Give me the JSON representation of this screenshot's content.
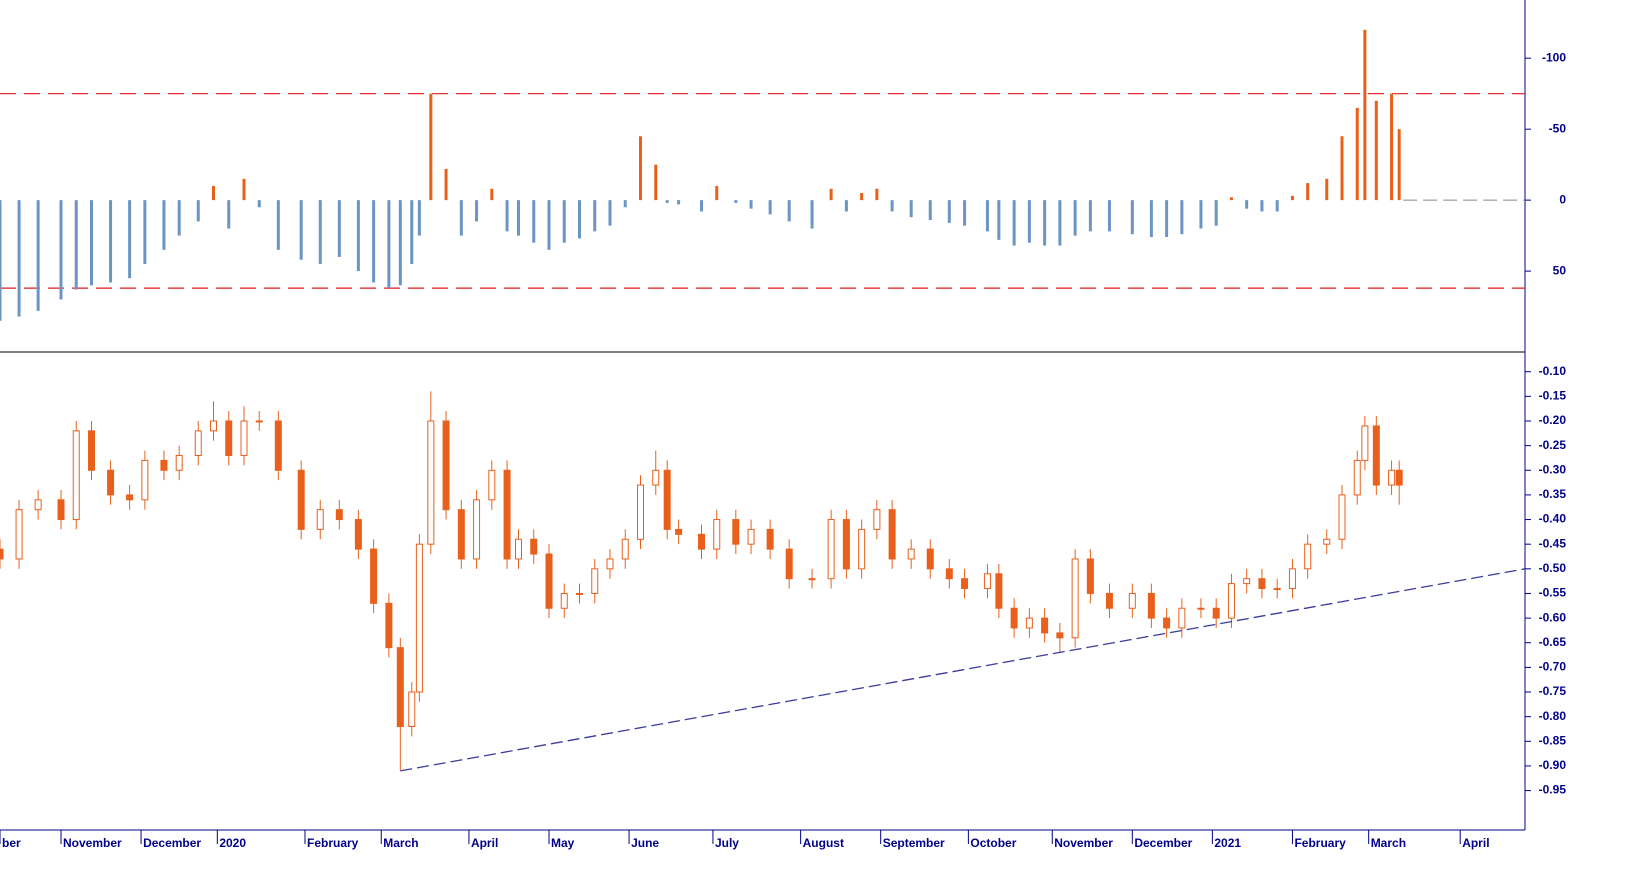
{
  "chart_data": [
    {
      "type": "bar",
      "x": [
        0,
        5,
        10,
        16,
        20,
        24,
        29,
        34,
        38,
        43,
        47,
        52,
        56,
        60,
        64,
        68,
        73,
        79,
        84,
        89,
        94,
        98,
        102,
        105,
        108,
        110,
        113,
        117,
        121,
        125,
        129,
        133,
        136,
        140,
        144,
        148,
        152,
        156,
        160,
        164,
        168,
        172,
        175,
        178,
        184,
        188,
        193,
        197,
        202,
        207,
        213,
        218,
        222,
        226,
        230,
        234,
        239,
        244,
        249,
        253,
        259,
        262,
        266,
        270,
        274,
        278,
        282,
        286,
        291,
        297,
        302,
        306,
        310,
        315,
        319,
        323,
        327,
        331,
        335,
        339,
        343,
        348,
        352,
        356,
        358,
        361,
        365,
        367
      ],
      "values": [
        85,
        82,
        78,
        70,
        63,
        60,
        58,
        55,
        45,
        35,
        25,
        15,
        -10,
        20,
        -15,
        5,
        35,
        42,
        45,
        40,
        50,
        58,
        62,
        60,
        45,
        25,
        -75,
        -22,
        25,
        15,
        -8,
        22,
        25,
        30,
        35,
        30,
        27,
        22,
        18,
        5,
        -45,
        -25,
        2,
        3,
        8,
        -10,
        2,
        6,
        10,
        15,
        20,
        -8,
        8,
        -5,
        -8,
        8,
        12,
        14,
        16,
        18,
        22,
        28,
        32,
        30,
        32,
        32,
        25,
        22,
        22,
        24,
        26,
        26,
        24,
        20,
        18,
        -2,
        6,
        8,
        8,
        -3,
        -12,
        -15,
        -45,
        -65,
        -120,
        -70,
        -75,
        -50
      ],
      "negative_color": "#e8601c",
      "positive_color": "#6b95c4",
      "hlines": [
        -75,
        62
      ],
      "hline_color": "#e31a1c",
      "xlim": [
        0,
        400
      ],
      "ylim": [
        107,
        -141
      ],
      "yticks": [
        -100,
        -50,
        0,
        50
      ]
    },
    {
      "type": "candlestick",
      "x": [
        0,
        5,
        10,
        16,
        20,
        24,
        29,
        34,
        38,
        43,
        47,
        52,
        56,
        60,
        64,
        68,
        73,
        79,
        84,
        89,
        94,
        98,
        102,
        105,
        108,
        110,
        113,
        117,
        121,
        125,
        129,
        133,
        136,
        140,
        144,
        148,
        152,
        156,
        160,
        164,
        168,
        172,
        175,
        178,
        184,
        188,
        193,
        197,
        202,
        207,
        213,
        218,
        222,
        226,
        230,
        234,
        239,
        244,
        249,
        253,
        259,
        262,
        266,
        270,
        274,
        278,
        282,
        286,
        291,
        297,
        302,
        306,
        310,
        315,
        319,
        323,
        327,
        331,
        335,
        339,
        343,
        348,
        352,
        356,
        358,
        361,
        365,
        367
      ],
      "open": [
        -0.46,
        -0.48,
        -0.38,
        -0.36,
        -0.4,
        -0.22,
        -0.3,
        -0.35,
        -0.36,
        -0.28,
        -0.3,
        -0.27,
        -0.22,
        -0.2,
        -0.27,
        -0.2,
        -0.2,
        -0.3,
        -0.42,
        -0.38,
        -0.4,
        -0.46,
        -0.57,
        -0.66,
        -0.82,
        -0.75,
        -0.45,
        -0.2,
        -0.38,
        -0.48,
        -0.36,
        -0.3,
        -0.48,
        -0.44,
        -0.47,
        -0.58,
        -0.55,
        -0.55,
        -0.5,
        -0.48,
        -0.44,
        -0.33,
        -0.3,
        -0.42,
        -0.43,
        -0.46,
        -0.4,
        -0.45,
        -0.42,
        -0.46,
        -0.52,
        -0.52,
        -0.4,
        -0.5,
        -0.42,
        -0.38,
        -0.48,
        -0.46,
        -0.5,
        -0.52,
        -0.54,
        -0.51,
        -0.58,
        -0.62,
        -0.6,
        -0.63,
        -0.64,
        -0.48,
        -0.55,
        -0.58,
        -0.55,
        -0.6,
        -0.62,
        -0.58,
        -0.58,
        -0.6,
        -0.53,
        -0.52,
        -0.54,
        -0.54,
        -0.5,
        -0.45,
        -0.44,
        -0.35,
        -0.28,
        -0.21,
        -0.33,
        -0.3
      ],
      "high": [
        -0.44,
        -0.36,
        -0.34,
        -0.34,
        -0.2,
        -0.2,
        -0.28,
        -0.33,
        -0.26,
        -0.26,
        -0.25,
        -0.2,
        -0.16,
        -0.18,
        -0.17,
        -0.18,
        -0.18,
        -0.28,
        -0.36,
        -0.36,
        -0.38,
        -0.44,
        -0.55,
        -0.64,
        -0.73,
        -0.43,
        -0.14,
        -0.18,
        -0.36,
        -0.34,
        -0.28,
        -0.28,
        -0.42,
        -0.42,
        -0.45,
        -0.53,
        -0.53,
        -0.48,
        -0.46,
        -0.42,
        -0.31,
        -0.26,
        -0.28,
        -0.4,
        -0.41,
        -0.38,
        -0.38,
        -0.4,
        -0.4,
        -0.44,
        -0.5,
        -0.38,
        -0.38,
        -0.4,
        -0.36,
        -0.36,
        -0.44,
        -0.44,
        -0.48,
        -0.5,
        -0.49,
        -0.49,
        -0.56,
        -0.58,
        -0.58,
        -0.61,
        -0.46,
        -0.46,
        -0.53,
        -0.53,
        -0.53,
        -0.58,
        -0.56,
        -0.56,
        -0.56,
        -0.51,
        -0.5,
        -0.5,
        -0.52,
        -0.48,
        -0.43,
        -0.42,
        -0.33,
        -0.26,
        -0.19,
        -0.19,
        -0.28,
        -0.28
      ],
      "low": [
        -0.5,
        -0.5,
        -0.4,
        -0.42,
        -0.42,
        -0.32,
        -0.37,
        -0.38,
        -0.38,
        -0.32,
        -0.32,
        -0.29,
        -0.24,
        -0.29,
        -0.29,
        -0.22,
        -0.32,
        -0.44,
        -0.44,
        -0.42,
        -0.48,
        -0.59,
        -0.68,
        -0.91,
        -0.84,
        -0.77,
        -0.47,
        -0.4,
        -0.5,
        -0.5,
        -0.38,
        -0.5,
        -0.5,
        -0.49,
        -0.6,
        -0.6,
        -0.57,
        -0.57,
        -0.52,
        -0.5,
        -0.46,
        -0.35,
        -0.44,
        -0.45,
        -0.48,
        -0.48,
        -0.47,
        -0.47,
        -0.48,
        -0.54,
        -0.54,
        -0.54,
        -0.52,
        -0.52,
        -0.44,
        -0.5,
        -0.5,
        -0.52,
        -0.54,
        -0.56,
        -0.56,
        -0.6,
        -0.64,
        -0.64,
        -0.65,
        -0.67,
        -0.66,
        -0.57,
        -0.6,
        -0.6,
        -0.62,
        -0.64,
        -0.64,
        -0.6,
        -0.62,
        -0.62,
        -0.55,
        -0.56,
        -0.56,
        -0.56,
        -0.52,
        -0.47,
        -0.46,
        -0.37,
        -0.3,
        -0.35,
        -0.35,
        -0.37
      ],
      "close": [
        -0.48,
        -0.38,
        -0.36,
        -0.4,
        -0.22,
        -0.3,
        -0.35,
        -0.36,
        -0.28,
        -0.3,
        -0.27,
        -0.22,
        -0.2,
        -0.27,
        -0.2,
        -0.2,
        -0.3,
        -0.42,
        -0.38,
        -0.4,
        -0.46,
        -0.57,
        -0.66,
        -0.82,
        -0.75,
        -0.45,
        -0.2,
        -0.38,
        -0.48,
        -0.36,
        -0.3,
        -0.48,
        -0.44,
        -0.47,
        -0.58,
        -0.55,
        -0.55,
        -0.5,
        -0.48,
        -0.44,
        -0.33,
        -0.3,
        -0.42,
        -0.43,
        -0.46,
        -0.4,
        -0.45,
        -0.42,
        -0.46,
        -0.52,
        -0.52,
        -0.4,
        -0.5,
        -0.42,
        -0.38,
        -0.48,
        -0.46,
        -0.5,
        -0.52,
        -0.54,
        -0.51,
        -0.58,
        -0.62,
        -0.6,
        -0.63,
        -0.64,
        -0.48,
        -0.55,
        -0.58,
        -0.55,
        -0.6,
        -0.62,
        -0.58,
        -0.58,
        -0.6,
        -0.53,
        -0.52,
        -0.54,
        -0.54,
        -0.5,
        -0.45,
        -0.44,
        -0.35,
        -0.28,
        -0.21,
        -0.33,
        -0.3,
        -0.33
      ],
      "color": "#e8601c",
      "trendline": {
        "x": [
          105,
          400
        ],
        "y": [
          -0.91,
          -0.5
        ],
        "color": "#3b3b9b"
      },
      "xlim": [
        0,
        400
      ],
      "ylim": [
        -1.03,
        -0.06
      ],
      "yticks": [
        {
          "value": -0.1,
          "label": "-0.10"
        },
        {
          "value": -0.15,
          "label": "-0.15"
        },
        {
          "value": -0.2,
          "label": "-0.20"
        },
        {
          "value": -0.25,
          "label": "-0.25"
        },
        {
          "value": -0.3,
          "label": "-0.30"
        },
        {
          "value": -0.35,
          "label": "-0.35"
        },
        {
          "value": -0.4,
          "label": "-0.40"
        },
        {
          "value": -0.45,
          "label": "-0.45"
        },
        {
          "value": -0.5,
          "label": "-0.50"
        },
        {
          "value": -0.55,
          "label": "-0.55"
        },
        {
          "value": -0.6,
          "label": "-0.60"
        },
        {
          "value": -0.65,
          "label": "-0.65"
        },
        {
          "value": -0.7,
          "label": "-0.70"
        },
        {
          "value": -0.75,
          "label": "-0.75"
        },
        {
          "value": -0.8,
          "label": "-0.80"
        },
        {
          "value": -0.85,
          "label": "-0.85"
        },
        {
          "value": -0.9,
          "label": "-0.90"
        },
        {
          "value": -0.95,
          "label": "-0.95"
        }
      ],
      "xticks": [
        {
          "value": 0,
          "label": "ber"
        },
        {
          "value": 16,
          "label": "November"
        },
        {
          "value": 37,
          "label": "December"
        },
        {
          "value": 57,
          "label": "2020"
        },
        {
          "value": 80,
          "label": "February"
        },
        {
          "value": 100,
          "label": "March"
        },
        {
          "value": 123,
          "label": "April"
        },
        {
          "value": 144,
          "label": "May"
        },
        {
          "value": 165,
          "label": "June"
        },
        {
          "value": 187,
          "label": "July"
        },
        {
          "value": 210,
          "label": "August"
        },
        {
          "value": 231,
          "label": "September"
        },
        {
          "value": 254,
          "label": "October"
        },
        {
          "value": 276,
          "label": "November"
        },
        {
          "value": 297,
          "label": "December"
        },
        {
          "value": 318,
          "label": "2021"
        },
        {
          "value": 339,
          "label": "February"
        },
        {
          "value": 359,
          "label": "March"
        },
        {
          "value": 383,
          "label": "April"
        }
      ]
    }
  ]
}
